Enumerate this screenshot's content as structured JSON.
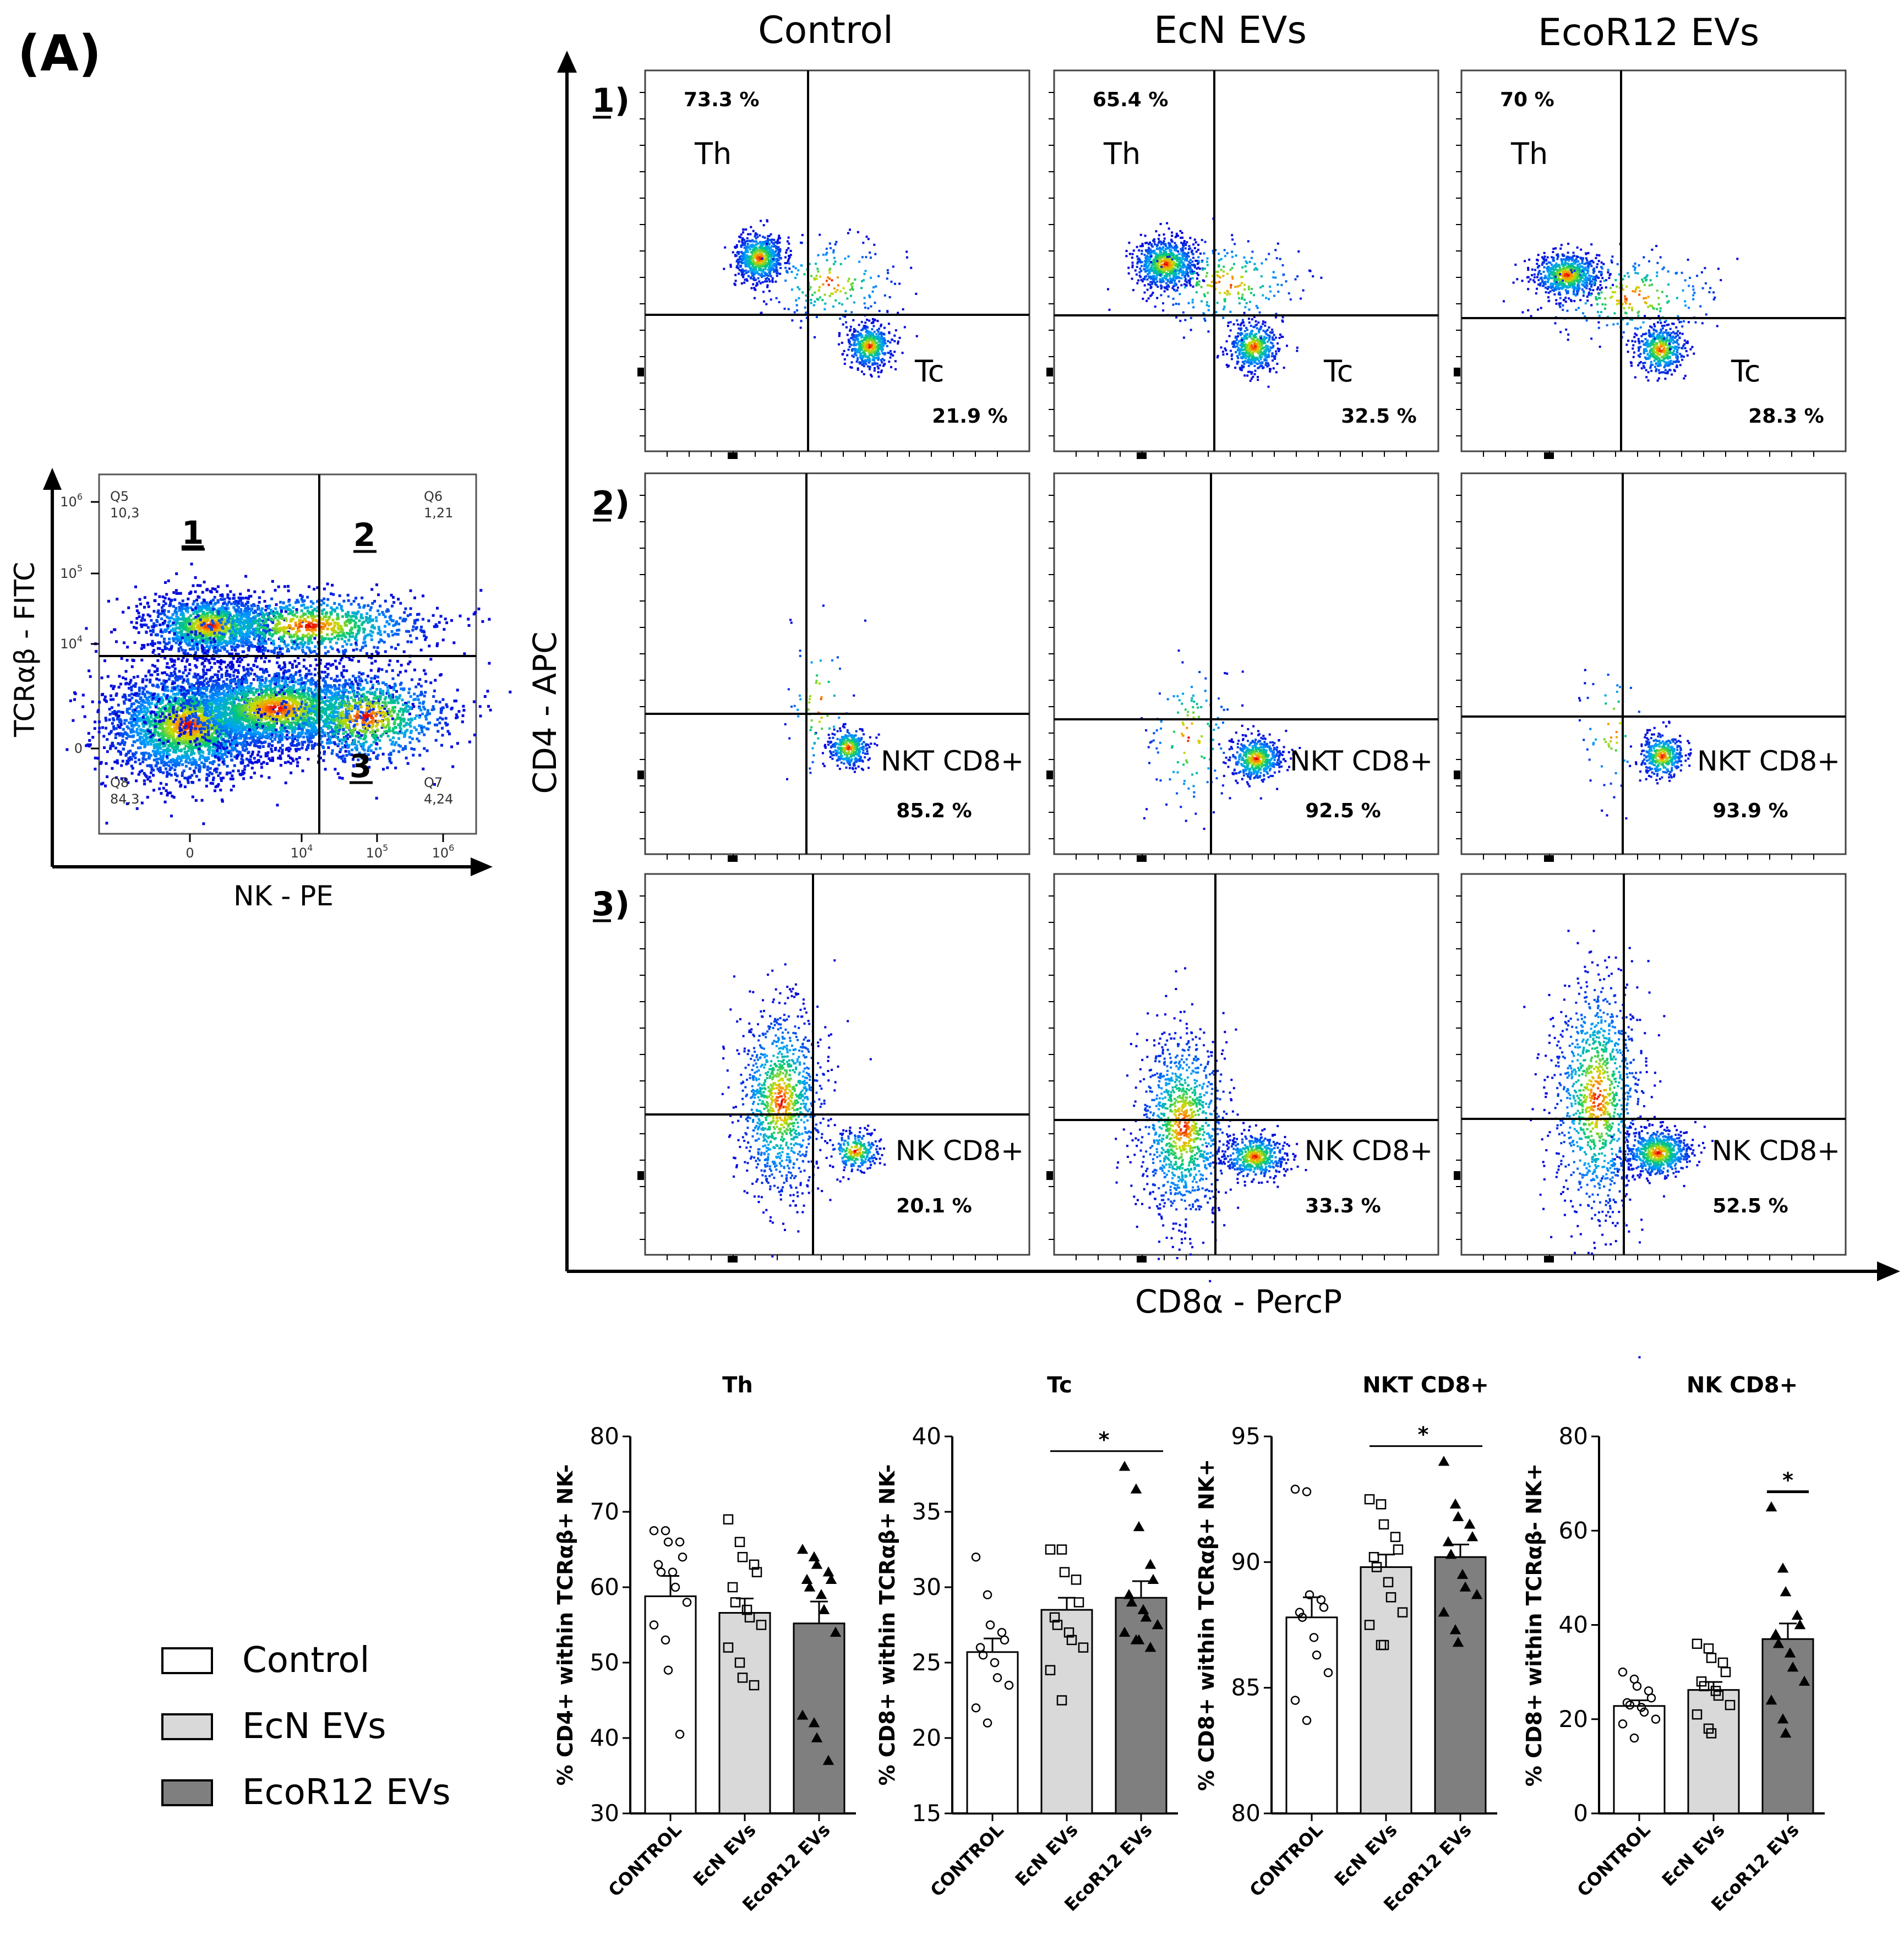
{
  "panel_label": "(A)",
  "gating_plot": {
    "y_axis_label": "TCRαβ - FITC",
    "x_axis_label": "NK - PE",
    "y_ticks": [
      {
        "base": "10",
        "exp": "6"
      },
      {
        "base": "10",
        "exp": "5"
      },
      {
        "base": "10",
        "exp": "4"
      },
      {
        "base": "0",
        "exp": ""
      }
    ],
    "x_ticks": [
      {
        "base": "0",
        "exp": ""
      },
      {
        "base": "10",
        "exp": "4"
      },
      {
        "base": "10",
        "exp": "5"
      },
      {
        "base": "10",
        "exp": "6"
      }
    ],
    "quadrants": [
      {
        "name": "Q5",
        "value": "10,3"
      },
      {
        "name": "Q6",
        "value": "1,21"
      },
      {
        "name": "Q7",
        "value": "4,24"
      },
      {
        "name": "Q8",
        "value": "84,3"
      }
    ],
    "gate_numbers": [
      "1",
      "2",
      "3"
    ]
  },
  "flow_grid": {
    "column_titles": [
      "Control",
      "EcN EVs",
      "EcoR12 EVs"
    ],
    "row_labels": [
      "1)",
      "2)",
      "3)"
    ],
    "y_axis_label": "CD4 - APC",
    "x_axis_label": "CD8α - PercP",
    "rows": [
      {
        "cells": [
          {
            "upper_pct": "73.3 %",
            "upper_label": "Th",
            "lower_label": "Tc",
            "lower_pct": "21.9 %"
          },
          {
            "upper_pct": "65.4 %",
            "upper_label": "Th",
            "lower_label": "Tc",
            "lower_pct": "32.5 %"
          },
          {
            "upper_pct": "70 %",
            "upper_label": "Th",
            "lower_label": "Tc",
            "lower_pct": "28.3 %"
          }
        ]
      },
      {
        "cells": [
          {
            "lower_label": "NKT CD8+",
            "lower_pct": "85.2 %"
          },
          {
            "lower_label": "NKT CD8+",
            "lower_pct": "92.5 %"
          },
          {
            "lower_label": "NKT CD8+",
            "lower_pct": "93.9 %"
          }
        ]
      },
      {
        "cells": [
          {
            "lower_label": "NK CD8+",
            "lower_pct": "20.1 %"
          },
          {
            "lower_label": "NK CD8+",
            "lower_pct": "33.3 %"
          },
          {
            "lower_label": "NK CD8+",
            "lower_pct": "52.5 %"
          }
        ]
      }
    ]
  },
  "legend": [
    {
      "label": "Control",
      "color": "#ffffff"
    },
    {
      "label": "EcN EVs",
      "color": "#d9d9d9"
    },
    {
      "label": "EcoR12 EVs",
      "color": "#7f7f7f"
    }
  ],
  "chart_data": [
    {
      "type": "bar",
      "title": "Th",
      "ylabel": "% CD4+ within TCRαβ+ NK-",
      "ylim": [
        30,
        80
      ],
      "yticks": [
        30,
        40,
        50,
        60,
        70,
        80
      ],
      "categories": [
        "CONTROL",
        "EcN EVs",
        "EcoR12 EVs"
      ],
      "values": [
        58.8,
        56.6,
        55.2
      ],
      "sem": [
        2.7,
        1.9,
        2.9
      ],
      "marker": [
        "circle",
        "square",
        "triangle"
      ],
      "points": [
        [
          67.5,
          67.5,
          66,
          66,
          64,
          63,
          62,
          62,
          60,
          58,
          55,
          53,
          49,
          40.5
        ],
        [
          69,
          66,
          64,
          63,
          62,
          60,
          58,
          57,
          56,
          55,
          52,
          50,
          48,
          47
        ],
        [
          65,
          64,
          63,
          62,
          61,
          61,
          60,
          59,
          57,
          54,
          43,
          42,
          40,
          37
        ]
      ],
      "significance": []
    },
    {
      "type": "bar",
      "title": "Tc",
      "ylabel": "% CD8+ within TCRαβ+ NK-",
      "ylim": [
        15,
        40
      ],
      "yticks": [
        15,
        20,
        25,
        30,
        35,
        40
      ],
      "categories": [
        "CONTROL",
        "EcN EVs",
        "EcoR12 EVs"
      ],
      "values": [
        25.7,
        28.5,
        29.3
      ],
      "sem": [
        0.9,
        0.8,
        1.1
      ],
      "marker": [
        "circle",
        "square",
        "triangle"
      ],
      "points": [
        [
          32,
          29.5,
          27.5,
          27,
          26.5,
          26,
          25.5,
          25,
          24,
          23.5,
          22,
          21
        ],
        [
          32.5,
          32.5,
          31,
          30.5,
          29,
          28,
          27.5,
          27,
          26.5,
          26,
          24.5,
          22.5
        ],
        [
          38,
          36.5,
          34,
          31.5,
          30.5,
          29.5,
          29,
          28.5,
          28,
          27.5,
          27,
          26.5,
          26.5,
          26
        ]
      ],
      "significance": [
        {
          "from": 1,
          "to": 2,
          "label": "*"
        }
      ]
    },
    {
      "type": "bar",
      "title": "NKT CD8+",
      "ylabel": "% CD8+ within TCRαβ+ NK+",
      "ylim": [
        80,
        95
      ],
      "yticks": [
        80,
        85,
        90,
        95
      ],
      "categories": [
        "CONTROL",
        "EcN EVs",
        "EcoR12 EVs"
      ],
      "values": [
        87.8,
        89.8,
        90.2
      ],
      "sem": [
        0.8,
        0.5,
        0.5
      ],
      "marker": [
        "circle",
        "square",
        "triangle"
      ],
      "points": [
        [
          92.9,
          92.8,
          88.7,
          88.5,
          88.2,
          88,
          87.8,
          87,
          86.3,
          85.6,
          84.5,
          83.7
        ],
        [
          92.5,
          92.3,
          91.5,
          91,
          90.5,
          90.2,
          89.8,
          89.2,
          88.6,
          88,
          87.5,
          86.7,
          86.7
        ],
        [
          94,
          92.3,
          91.8,
          91.5,
          91,
          90.8,
          90.3,
          89.5,
          89,
          88.7,
          88,
          87.3,
          86.8
        ]
      ],
      "significance": [
        {
          "from": 1,
          "to": 2,
          "label": "*"
        }
      ]
    },
    {
      "type": "bar",
      "title": "NK CD8+",
      "ylabel": "% CD8+ within TCRαβ- NK+",
      "ylim": [
        0,
        80
      ],
      "yticks": [
        0,
        20,
        40,
        60,
        80
      ],
      "categories": [
        "CONTROL",
        "EcN EVs",
        "EcoR12 EVs"
      ],
      "values": [
        22.8,
        26.2,
        37
      ],
      "sem": [
        1.2,
        1.7,
        3.3
      ],
      "marker": [
        "circle",
        "square",
        "triangle"
      ],
      "points": [
        [
          30,
          28.5,
          27,
          26,
          24.5,
          23.5,
          23,
          22.5,
          21.5,
          20,
          19,
          16
        ],
        [
          36,
          35,
          33,
          32,
          30,
          28,
          27,
          26,
          25,
          23,
          21,
          18,
          17
        ],
        [
          65,
          52,
          47,
          42,
          40,
          38,
          36,
          34,
          31,
          28,
          24,
          20,
          17
        ]
      ],
      "significance": [
        {
          "from": 2,
          "to": 2,
          "label": "*"
        }
      ]
    }
  ]
}
